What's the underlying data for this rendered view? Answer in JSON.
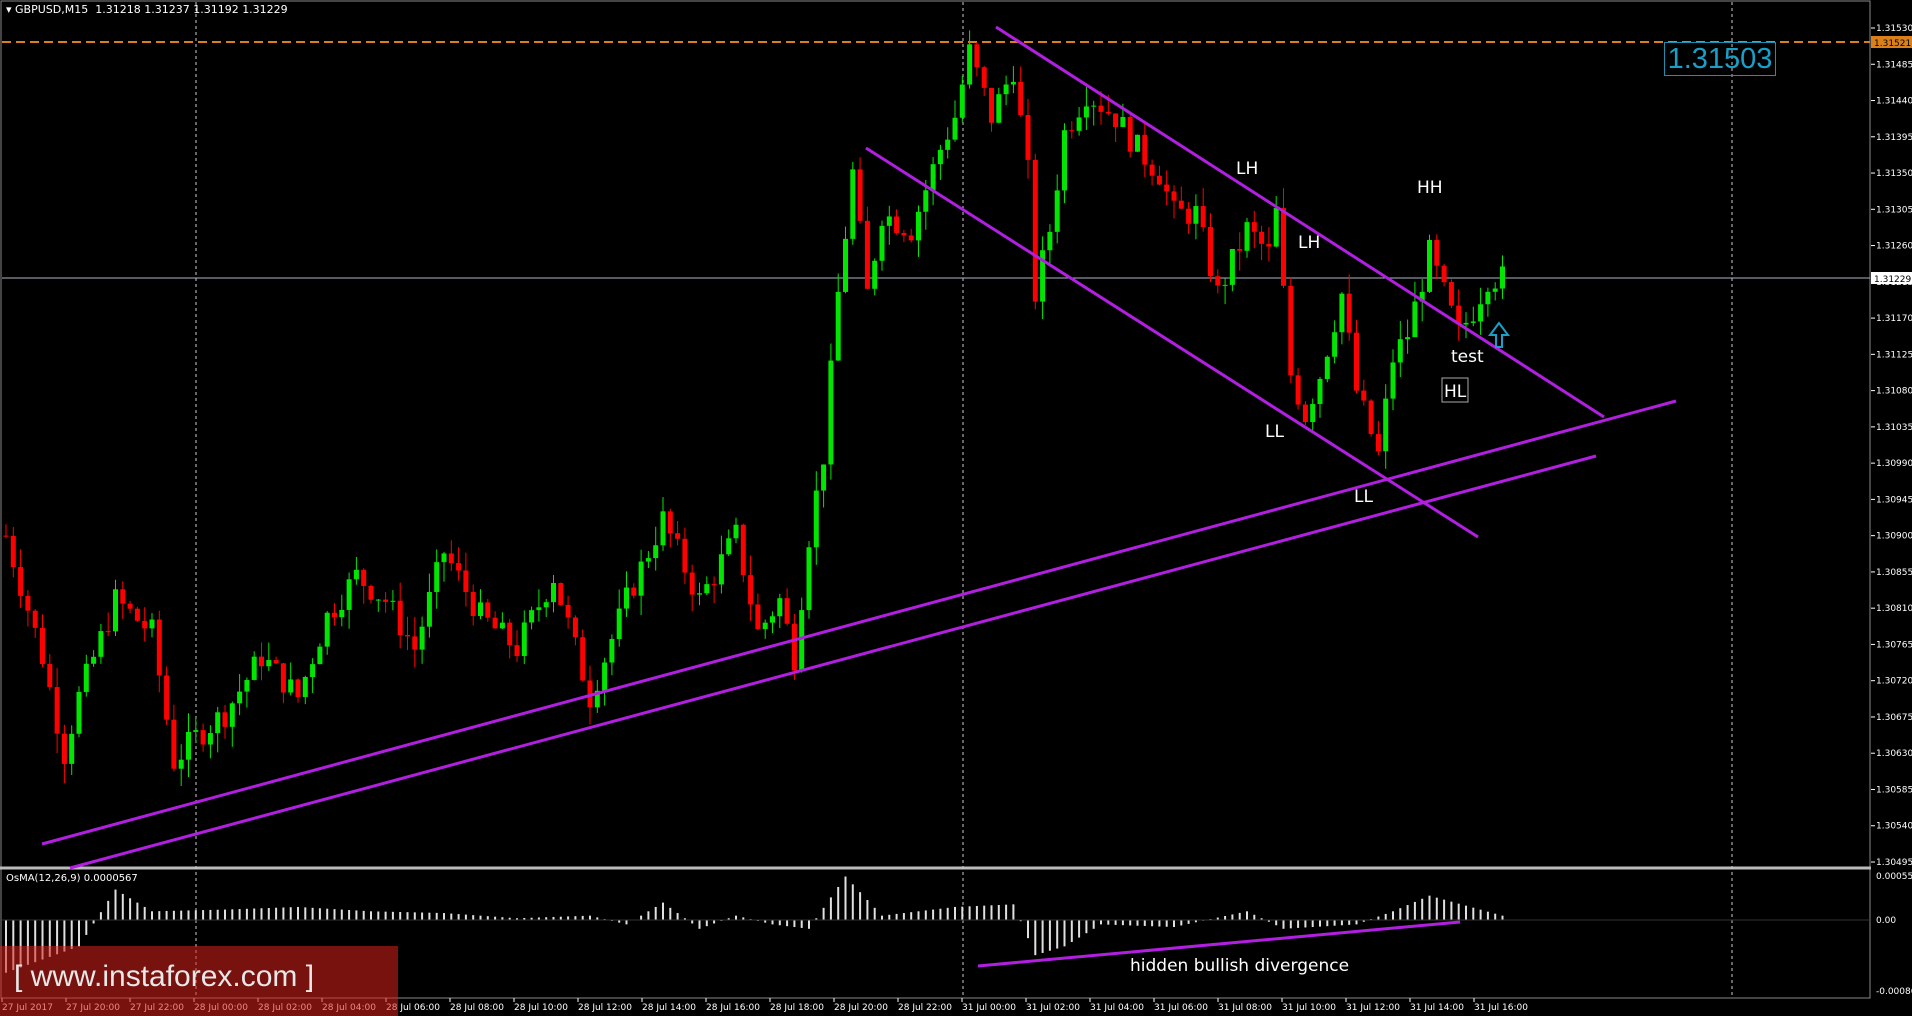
{
  "header": {
    "symbol": "GBPUSD,M15",
    "ohlc": "1.31218 1.31237 1.31192 1.31229"
  },
  "indicator": {
    "label": "OsMA(12,26,9) 0.0000567",
    "scale_top": "0.000552",
    "scale_zero": "0.00",
    "scale_bottom": "-0.000865"
  },
  "watermark": "www.instaforex.com",
  "big_price": "1.31503",
  "colors": {
    "background": "#000000",
    "bull": "#00e600",
    "bear": "#ff0000",
    "trendline": "#b11fe0",
    "resistance": "#d9801a",
    "current_price": "#a6b8c8",
    "osma": "#e0e0e0",
    "axis_text": "#ffffff",
    "price_box": "#1aa0c8",
    "watermark": "#d9201c"
  },
  "annotations": {
    "lh1": "LH",
    "lh2": "LH",
    "hh": "HH",
    "ll1": "LL",
    "ll2": "LL",
    "test": "test",
    "hl": "HL",
    "divergence": "hidden bullish divergence"
  },
  "chart_data": {
    "type": "candlestick",
    "title": "GBPUSD,M15",
    "ylim": [
      1.30495,
      1.31566
    ],
    "y_ticks": [
      "1.31530",
      "1.31485",
      "1.31440",
      "1.31395",
      "1.31350",
      "1.31305",
      "1.31260",
      "1.31215",
      "1.31170",
      "1.31125",
      "1.31080",
      "1.31035",
      "1.30990",
      "1.30945",
      "1.30900",
      "1.30855",
      "1.30810",
      "1.30765",
      "1.30720",
      "1.30675",
      "1.30630",
      "1.30585",
      "1.30540",
      "1.30495"
    ],
    "x_ticks": [
      "27 Jul 2017",
      "27 Jul 20:00",
      "27 Jul 22:00",
      "28 Jul 00:00",
      "28 Jul 02:00",
      "28 Jul 04:00",
      "28 Jul 06:00",
      "28 Jul 08:00",
      "28 Jul 10:00",
      "28 Jul 12:00",
      "28 Jul 14:00",
      "28 Jul 16:00",
      "28 Jul 18:00",
      "28 Jul 20:00",
      "28 Jul 22:00",
      "31 Jul 00:00",
      "31 Jul 02:00",
      "31 Jul 04:00",
      "31 Jul 06:00",
      "31 Jul 08:00",
      "31 Jul 10:00",
      "31 Jul 12:00",
      "31 Jul 14:00",
      "31 Jul 16:00"
    ],
    "resistance_level": "1.31521",
    "current_price": "1.31229",
    "close_path": [
      [
        0,
        1.309
      ],
      [
        5,
        1.3075
      ],
      [
        8,
        1.3063
      ],
      [
        10,
        1.307
      ],
      [
        15,
        1.3082
      ],
      [
        20,
        1.3078
      ],
      [
        23,
        1.3062
      ],
      [
        26,
        1.3065
      ],
      [
        30,
        1.3068
      ],
      [
        35,
        1.3075
      ],
      [
        40,
        1.307
      ],
      [
        44,
        1.308
      ],
      [
        48,
        1.3085
      ],
      [
        52,
        1.3082
      ],
      [
        56,
        1.3076
      ],
      [
        60,
        1.3088
      ],
      [
        65,
        1.308
      ],
      [
        70,
        1.3076
      ],
      [
        75,
        1.3085
      ],
      [
        80,
        1.307
      ],
      [
        85,
        1.3082
      ],
      [
        90,
        1.3092
      ],
      [
        95,
        1.3082
      ],
      [
        100,
        1.309
      ],
      [
        103,
        1.3078
      ],
      [
        106,
        1.3082
      ],
      [
        108,
        1.3075
      ],
      [
        110,
        1.309
      ],
      [
        112,
        1.31
      ],
      [
        114,
        1.312
      ],
      [
        116,
        1.3135
      ],
      [
        118,
        1.312
      ],
      [
        120,
        1.313
      ],
      [
        124,
        1.3128
      ],
      [
        128,
        1.3138
      ],
      [
        130,
        1.3142
      ],
      [
        132,
        1.315
      ],
      [
        135,
        1.3142
      ],
      [
        138,
        1.3148
      ],
      [
        140,
        1.3135
      ],
      [
        141,
        1.312
      ],
      [
        143,
        1.3128
      ],
      [
        145,
        1.314
      ],
      [
        148,
        1.3145
      ],
      [
        152,
        1.3142
      ],
      [
        155,
        1.3138
      ],
      [
        158,
        1.3135
      ],
      [
        160,
        1.313
      ],
      [
        163,
        1.313
      ],
      [
        166,
        1.312
      ],
      [
        170,
        1.3128
      ],
      [
        173,
        1.3125
      ],
      [
        174,
        1.313
      ],
      [
        176,
        1.311
      ],
      [
        178,
        1.3105
      ],
      [
        180,
        1.311
      ],
      [
        183,
        1.312
      ],
      [
        185,
        1.3108
      ],
      [
        188,
        1.31
      ],
      [
        190,
        1.3112
      ],
      [
        192,
        1.3115
      ],
      [
        195,
        1.3125
      ],
      [
        197,
        1.312
      ],
      [
        199,
        1.3115
      ],
      [
        201,
        1.3118
      ],
      [
        203,
        1.3122
      ],
      [
        205,
        1.3122
      ]
    ],
    "osma_path": [
      [
        0,
        -0.0006
      ],
      [
        10,
        -0.0003
      ],
      [
        15,
        0.00035
      ],
      [
        20,
        0.0001
      ],
      [
        30,
        0.00012
      ],
      [
        40,
        0.00015
      ],
      [
        50,
        0.0001
      ],
      [
        60,
        8e-05
      ],
      [
        70,
        2e-05
      ],
      [
        80,
        5e-05
      ],
      [
        85,
        -5e-05
      ],
      [
        90,
        0.0002
      ],
      [
        95,
        -0.0001
      ],
      [
        100,
        5e-05
      ],
      [
        105,
        -5e-05
      ],
      [
        110,
        -0.0001
      ],
      [
        115,
        0.0005
      ],
      [
        120,
        5e-05
      ],
      [
        130,
        0.00015
      ],
      [
        138,
        0.00018
      ],
      [
        141,
        -0.0004
      ],
      [
        145,
        -0.0003
      ],
      [
        150,
        -5e-05
      ],
      [
        160,
        -8e-05
      ],
      [
        170,
        0.0001
      ],
      [
        175,
        -0.0001
      ],
      [
        185,
        -5e-05
      ],
      [
        190,
        0.0001
      ],
      [
        195,
        0.00028
      ],
      [
        205,
        5e-05
      ]
    ]
  }
}
